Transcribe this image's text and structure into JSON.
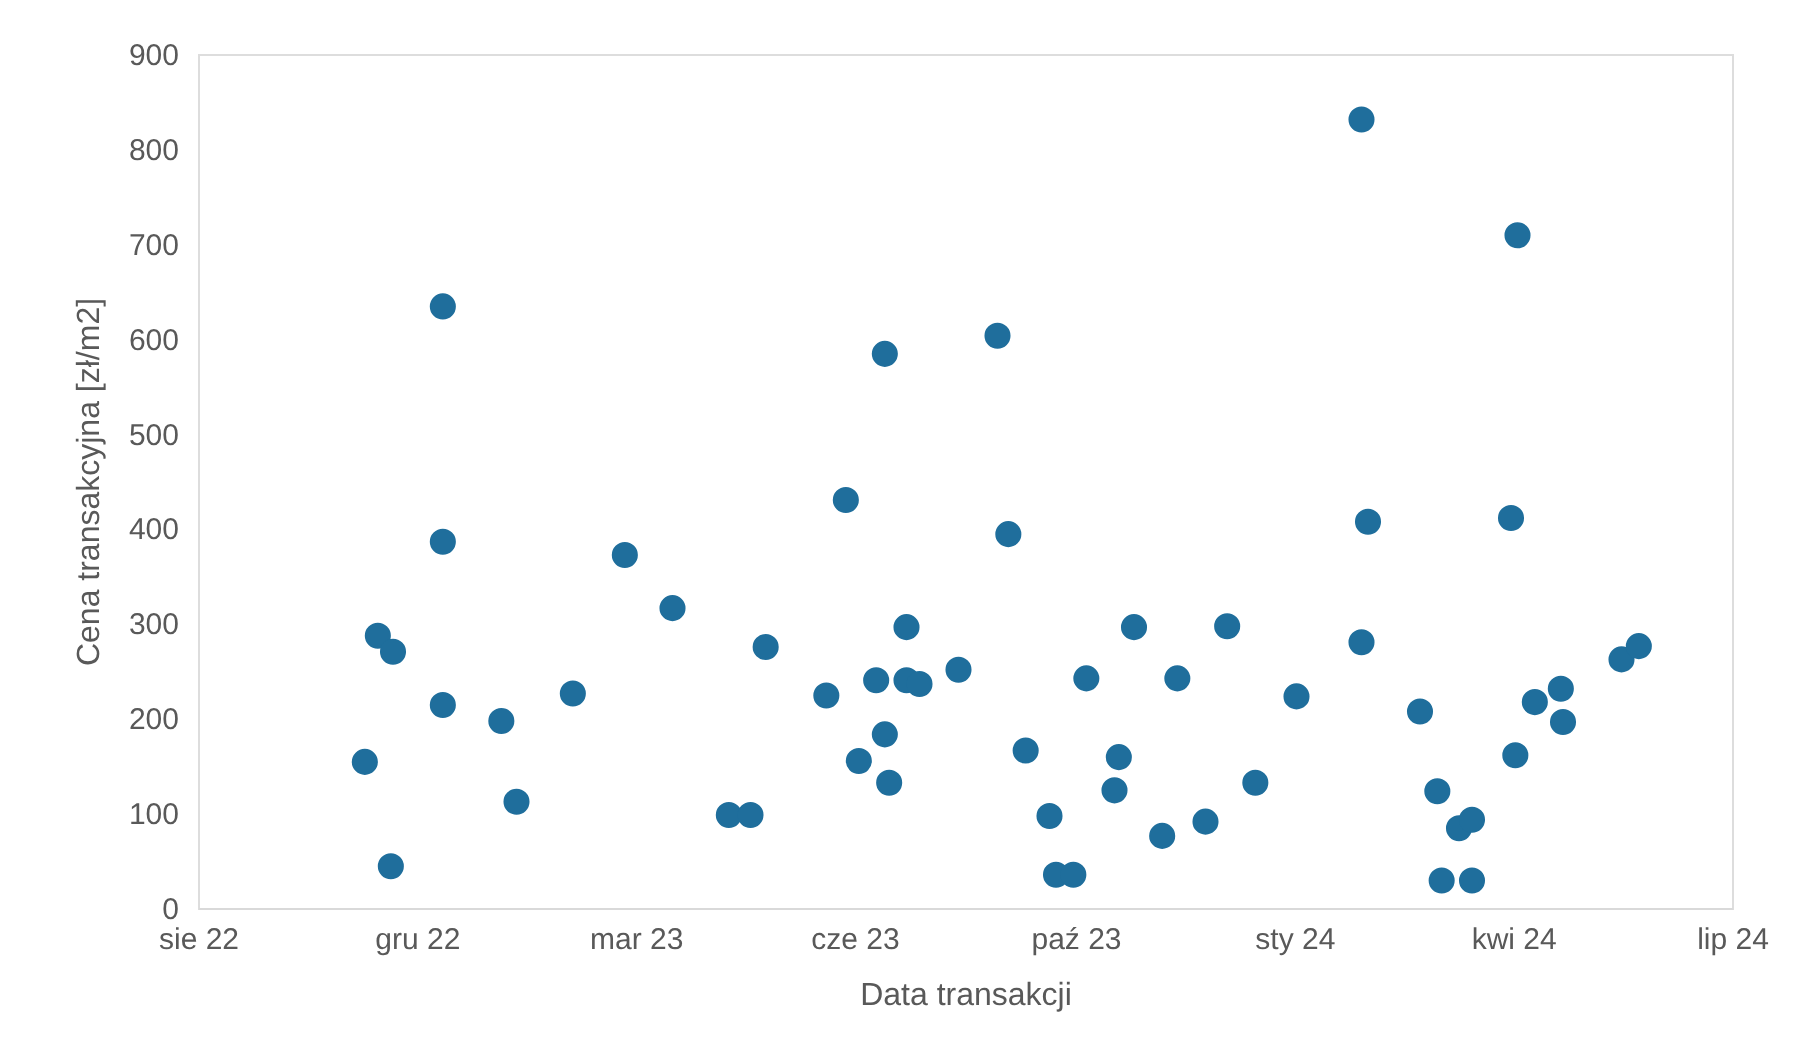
{
  "chart_data": {
    "type": "scatter",
    "xlabel": "Data transakcji",
    "ylabel": "Cena transakcyjna [zł/m2]",
    "xlim": [
      "2022-08-22",
      "2024-07-30"
    ],
    "xticks": [
      {
        "value": "2022-08-22",
        "label": "sie 22"
      },
      {
        "value": "2022-12-01",
        "label": "gru 22"
      },
      {
        "value": "2023-03-12",
        "label": "mar 23"
      },
      {
        "value": "2023-06-21",
        "label": "cze 23"
      },
      {
        "value": "2023-10-01",
        "label": "paź 23"
      },
      {
        "value": "2024-01-10",
        "label": "sty 24"
      },
      {
        "value": "2024-04-20",
        "label": "kwi 24"
      },
      {
        "value": "2024-07-30",
        "label": "lip 24"
      }
    ],
    "ylim": [
      0,
      900
    ],
    "yticks": [
      0,
      100,
      200,
      300,
      400,
      500,
      600,
      700,
      800,
      900
    ],
    "grid": false,
    "legend": false,
    "marker": "circle",
    "series": [
      {
        "color": "#1f6e9c",
        "x": [
          "2022-11-07",
          "2022-11-13",
          "2022-11-20",
          "2022-11-19",
          "2022-12-13",
          "2022-12-13",
          "2022-12-13",
          "2023-01-09",
          "2023-01-16",
          "2023-02-11",
          "2023-03-07",
          "2023-03-29",
          "2023-04-24",
          "2023-05-04",
          "2023-05-11",
          "2023-06-08",
          "2023-06-17",
          "2023-06-23",
          "2023-07-01",
          "2023-07-05",
          "2023-07-05",
          "2023-07-07",
          "2023-07-15",
          "2023-07-15",
          "2023-07-21",
          "2023-08-08",
          "2023-08-26",
          "2023-08-31",
          "2023-09-08",
          "2023-09-19",
          "2023-09-22",
          "2023-09-30",
          "2023-10-06",
          "2023-10-19",
          "2023-10-21",
          "2023-10-28",
          "2023-11-10",
          "2023-11-17",
          "2023-11-30",
          "2023-12-10",
          "2023-12-23",
          "2024-01-11",
          "2024-02-10",
          "2024-02-13",
          "2024-02-10",
          "2024-03-08",
          "2024-03-16",
          "2024-03-18",
          "2024-03-26",
          "2024-04-01",
          "2024-04-01",
          "2024-04-19",
          "2024-04-22",
          "2024-04-21",
          "2024-04-30",
          "2024-05-12",
          "2024-05-13",
          "2024-06-09",
          "2024-06-17"
        ],
        "values": [
          154,
          287,
          270,
          44,
          386,
          214,
          634,
          197,
          112,
          226,
          372,
          316,
          98,
          98,
          275,
          224,
          430,
          155,
          240,
          183,
          584,
          132,
          296,
          240,
          236,
          251,
          603,
          394,
          166,
          97,
          35,
          35,
          242,
          124,
          159,
          296,
          76,
          242,
          91,
          297,
          132,
          223,
          831,
          407,
          280,
          207,
          123,
          29,
          84,
          93,
          29,
          411,
          709,
          161,
          217,
          231,
          196,
          262,
          276
        ]
      }
    ]
  }
}
